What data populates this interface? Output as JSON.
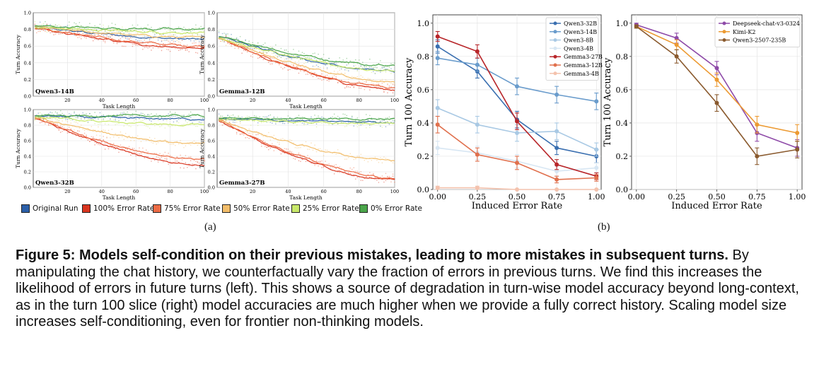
{
  "chart_data": [
    {
      "type": "line",
      "title": "Qwen3-14B",
      "xlabel": "Task Length",
      "ylabel": "Turn Accuracy",
      "xlim": [
        0,
        100
      ],
      "ylim": [
        0,
        1
      ],
      "xticks": [
        "20",
        "40",
        "60",
        "80",
        "100"
      ],
      "yticks": [
        "0.0",
        "0.2",
        "0.4",
        "0.6",
        "0.8",
        "1.0"
      ],
      "x": [
        1,
        100
      ],
      "series": [
        {
          "name": "Original Run",
          "start": 0.83,
          "end": 0.68
        },
        {
          "name": "100% Error Rate",
          "start": 0.82,
          "end": 0.57
        },
        {
          "name": "75% Error Rate",
          "start": 0.82,
          "end": 0.6
        },
        {
          "name": "50% Error Rate",
          "start": 0.83,
          "end": 0.7
        },
        {
          "name": "25% Error Rate",
          "start": 0.83,
          "end": 0.76
        },
        {
          "name": "0% Error Rate",
          "start": 0.84,
          "end": 0.8
        }
      ]
    },
    {
      "type": "line",
      "title": "Gemma3-12B",
      "xlabel": "Task Length",
      "ylabel": "Turn Accuracy",
      "xlim": [
        0,
        100
      ],
      "ylim": [
        0,
        1
      ],
      "xticks": [
        "20",
        "40",
        "60",
        "80",
        "100"
      ],
      "yticks": [
        "0.0",
        "0.2",
        "0.4",
        "0.6",
        "0.8",
        "1.0"
      ],
      "x": [
        1,
        100
      ],
      "series": [
        {
          "name": "Original Run",
          "start": 0.72,
          "end": 0.3
        },
        {
          "name": "100% Error Rate",
          "start": 0.7,
          "end": 0.08
        },
        {
          "name": "75% Error Rate",
          "start": 0.7,
          "end": 0.1
        },
        {
          "name": "50% Error Rate",
          "start": 0.7,
          "end": 0.17
        },
        {
          "name": "25% Error Rate",
          "start": 0.71,
          "end": 0.3
        },
        {
          "name": "0% Error Rate",
          "start": 0.72,
          "end": 0.36
        }
      ]
    },
    {
      "type": "line",
      "title": "Qwen3-32B",
      "xlabel": "Task Length",
      "ylabel": "Turn Accuracy",
      "xlim": [
        0,
        100
      ],
      "ylim": [
        0,
        1
      ],
      "xticks": [
        "20",
        "40",
        "60",
        "80",
        "100"
      ],
      "yticks": [
        "0.0",
        "0.2",
        "0.4",
        "0.6",
        "0.8",
        "1.0"
      ],
      "x": [
        1,
        100
      ],
      "series": [
        {
          "name": "Original Run",
          "start": 0.92,
          "end": 0.88
        },
        {
          "name": "100% Error Rate",
          "start": 0.9,
          "end": 0.28
        },
        {
          "name": "75% Error Rate",
          "start": 0.9,
          "end": 0.35
        },
        {
          "name": "50% Error Rate",
          "start": 0.9,
          "end": 0.56
        },
        {
          "name": "25% Error Rate",
          "start": 0.91,
          "end": 0.8
        },
        {
          "name": "0% Error Rate",
          "start": 0.92,
          "end": 0.92
        }
      ]
    },
    {
      "type": "line",
      "title": "Gemma3-27B",
      "xlabel": "Task Length",
      "ylabel": "Turn Accuracy",
      "xlim": [
        0,
        100
      ],
      "ylim": [
        0,
        1
      ],
      "xticks": [
        "20",
        "40",
        "60",
        "80",
        "100"
      ],
      "yticks": [
        "0.0",
        "0.2",
        "0.4",
        "0.6",
        "0.8",
        "1.0"
      ],
      "x": [
        1,
        100
      ],
      "series": [
        {
          "name": "Original Run",
          "start": 0.88,
          "end": 0.84
        },
        {
          "name": "100% Error Rate",
          "start": 0.87,
          "end": 0.09
        },
        {
          "name": "75% Error Rate",
          "start": 0.87,
          "end": 0.12
        },
        {
          "name": "50% Error Rate",
          "start": 0.87,
          "end": 0.35
        },
        {
          "name": "25% Error Rate",
          "start": 0.88,
          "end": 0.82
        },
        {
          "name": "0% Error Rate",
          "start": 0.89,
          "end": 0.88
        }
      ]
    },
    {
      "type": "line",
      "xlabel": "Induced Error Rate",
      "ylabel": "Turn 100 Accuracy",
      "xlim": [
        -0.03,
        1.03
      ],
      "ylim": [
        0,
        1.05
      ],
      "xticks": [
        "0.00",
        "0.25",
        "0.50",
        "0.75",
        "1.00"
      ],
      "yticks": [
        "0.0",
        "0.2",
        "0.4",
        "0.6",
        "0.8",
        "1.0"
      ],
      "x": [
        0,
        0.25,
        0.5,
        0.75,
        1.0
      ],
      "series": [
        {
          "name": "Qwen3-32B",
          "values": [
            0.86,
            0.71,
            0.42,
            0.25,
            0.2
          ],
          "err": [
            0.04,
            0.04,
            0.05,
            0.04,
            0.04
          ]
        },
        {
          "name": "Qwen3-14B",
          "values": [
            0.79,
            0.75,
            0.62,
            0.57,
            0.53
          ],
          "err": [
            0.04,
            0.04,
            0.05,
            0.05,
            0.05
          ]
        },
        {
          "name": "Qwen3-8B",
          "values": [
            0.49,
            0.39,
            0.34,
            0.35,
            0.24
          ],
          "err": [
            0.05,
            0.05,
            0.05,
            0.05,
            0.04
          ]
        },
        {
          "name": "Qwen3-4B",
          "values": [
            0.25,
            0.22,
            0.17,
            0.11,
            0.13
          ],
          "err": [
            0.04,
            0.04,
            0.04,
            0.03,
            0.03
          ]
        },
        {
          "name": "Gemma3-27B",
          "values": [
            0.92,
            0.83,
            0.41,
            0.15,
            0.08
          ],
          "err": [
            0.03,
            0.04,
            0.05,
            0.03,
            0.02
          ]
        },
        {
          "name": "Gemma3-12B",
          "values": [
            0.39,
            0.21,
            0.16,
            0.06,
            0.07
          ],
          "err": [
            0.05,
            0.04,
            0.04,
            0.02,
            0.02
          ]
        },
        {
          "name": "Gemma3-4B",
          "values": [
            0.01,
            0.01,
            0.0,
            0.0,
            0.0
          ],
          "err": [
            0.01,
            0.01,
            0.0,
            0.0,
            0.0
          ]
        }
      ]
    },
    {
      "type": "line",
      "xlabel": "Induced Error Rate",
      "ylabel": "Turn 100 Accuracy",
      "xlim": [
        -0.03,
        1.03
      ],
      "ylim": [
        0,
        1.05
      ],
      "xticks": [
        "0.00",
        "0.25",
        "0.50",
        "0.75",
        "1.00"
      ],
      "yticks": [
        "0.0",
        "0.2",
        "0.4",
        "0.6",
        "0.8",
        "1.0"
      ],
      "x": [
        0,
        0.25,
        0.5,
        0.75,
        1.0
      ],
      "series": [
        {
          "name": "Deepseek-chat-v3-0324",
          "values": [
            0.99,
            0.91,
            0.73,
            0.34,
            0.25
          ],
          "err": [
            0.01,
            0.03,
            0.04,
            0.05,
            0.05
          ]
        },
        {
          "name": "Kimi-K2",
          "values": [
            0.98,
            0.87,
            0.66,
            0.39,
            0.34
          ],
          "err": [
            0.01,
            0.03,
            0.04,
            0.05,
            0.05
          ]
        },
        {
          "name": "Qwen3-2507-235B",
          "values": [
            0.98,
            0.8,
            0.52,
            0.2,
            0.24
          ],
          "err": [
            0.01,
            0.04,
            0.05,
            0.05,
            0.05
          ]
        }
      ]
    }
  ],
  "colors": {
    "Original Run": "#2b5fa8",
    "100% Error Rate": "#d9351f",
    "75% Error Rate": "#ec6b45",
    "50% Error Rate": "#f2bd6a",
    "25% Error Rate": "#c8e86a",
    "0% Error Rate": "#4aa54a",
    "Qwen3-32B": "#3a6fb0",
    "Qwen3-14B": "#6a9ccc",
    "Qwen3-8B": "#a9c9e4",
    "Qwen3-4B": "#d7e6f3",
    "Gemma3-27B": "#b8262a",
    "Gemma3-12B": "#e0704d",
    "Gemma3-4B": "#f4c2ad",
    "Deepseek-chat-v3-0324": "#8e4aa8",
    "Kimi-K2": "#ec9a32",
    "Qwen3-2507-235B": "#8a5a2e"
  },
  "legend_a": [
    "Original Run",
    "100% Error Rate",
    "75% Error Rate",
    "50% Error Rate",
    "25% Error Rate",
    "0% Error Rate"
  ],
  "panel_labels": {
    "a": "(a)",
    "b": "(b)"
  },
  "caption": {
    "bold": "Figure 5: Models self-condition on their previous mistakes, leading to more mistakes in subsequent turns.",
    "text": " By manipulating the chat history, we counterfactually vary the fraction of errors in previous turns. We find this increases the likelihood of errors in future turns (left). This shows a source of degradation in turn-wise model accuracy beyond long-context, as in the turn 100 slice (right) model accuracies are much higher when we provide a fully correct history. Scaling model size increases self-conditioning, even for frontier non-thinking models."
  }
}
